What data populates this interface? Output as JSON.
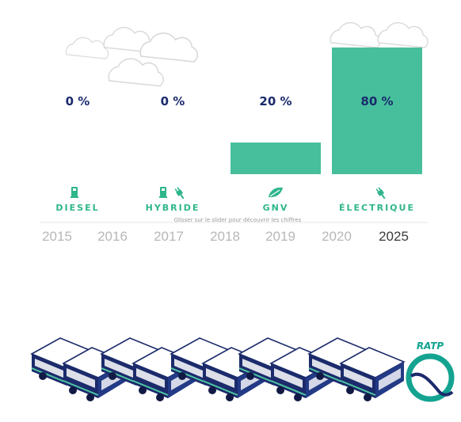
{
  "chart_data": {
    "type": "bar",
    "categories": [
      "DIESEL",
      "HYBRIDE",
      "GNV",
      "ÉLECTRIQUE"
    ],
    "values": [
      0,
      0,
      20,
      80
    ],
    "value_labels": [
      "0 %",
      "0 %",
      "20 %",
      "80 %"
    ],
    "ylim": [
      0,
      100
    ],
    "grid": false,
    "bar_color": "#47bf9c",
    "label_color": "#1a2a6c",
    "category_color": "#2fb58c"
  },
  "timeline": {
    "hint": "Glisser sur le slider pour découvrir les chiffres",
    "years": [
      "2015",
      "2016",
      "2017",
      "2018",
      "2019",
      "2020",
      "2025"
    ],
    "selected": "2025"
  },
  "fleet": {
    "logo_text": "RATP",
    "bus_count": 5,
    "colors": {
      "navy": "#1b2b6b",
      "mint": "#4ec7a3",
      "teal": "#14a391"
    }
  },
  "icons": [
    "cloud-icon",
    "fuel-pump-icon",
    "plug-icon",
    "leaf-icon",
    "bus-icon",
    "ratp-logo"
  ]
}
